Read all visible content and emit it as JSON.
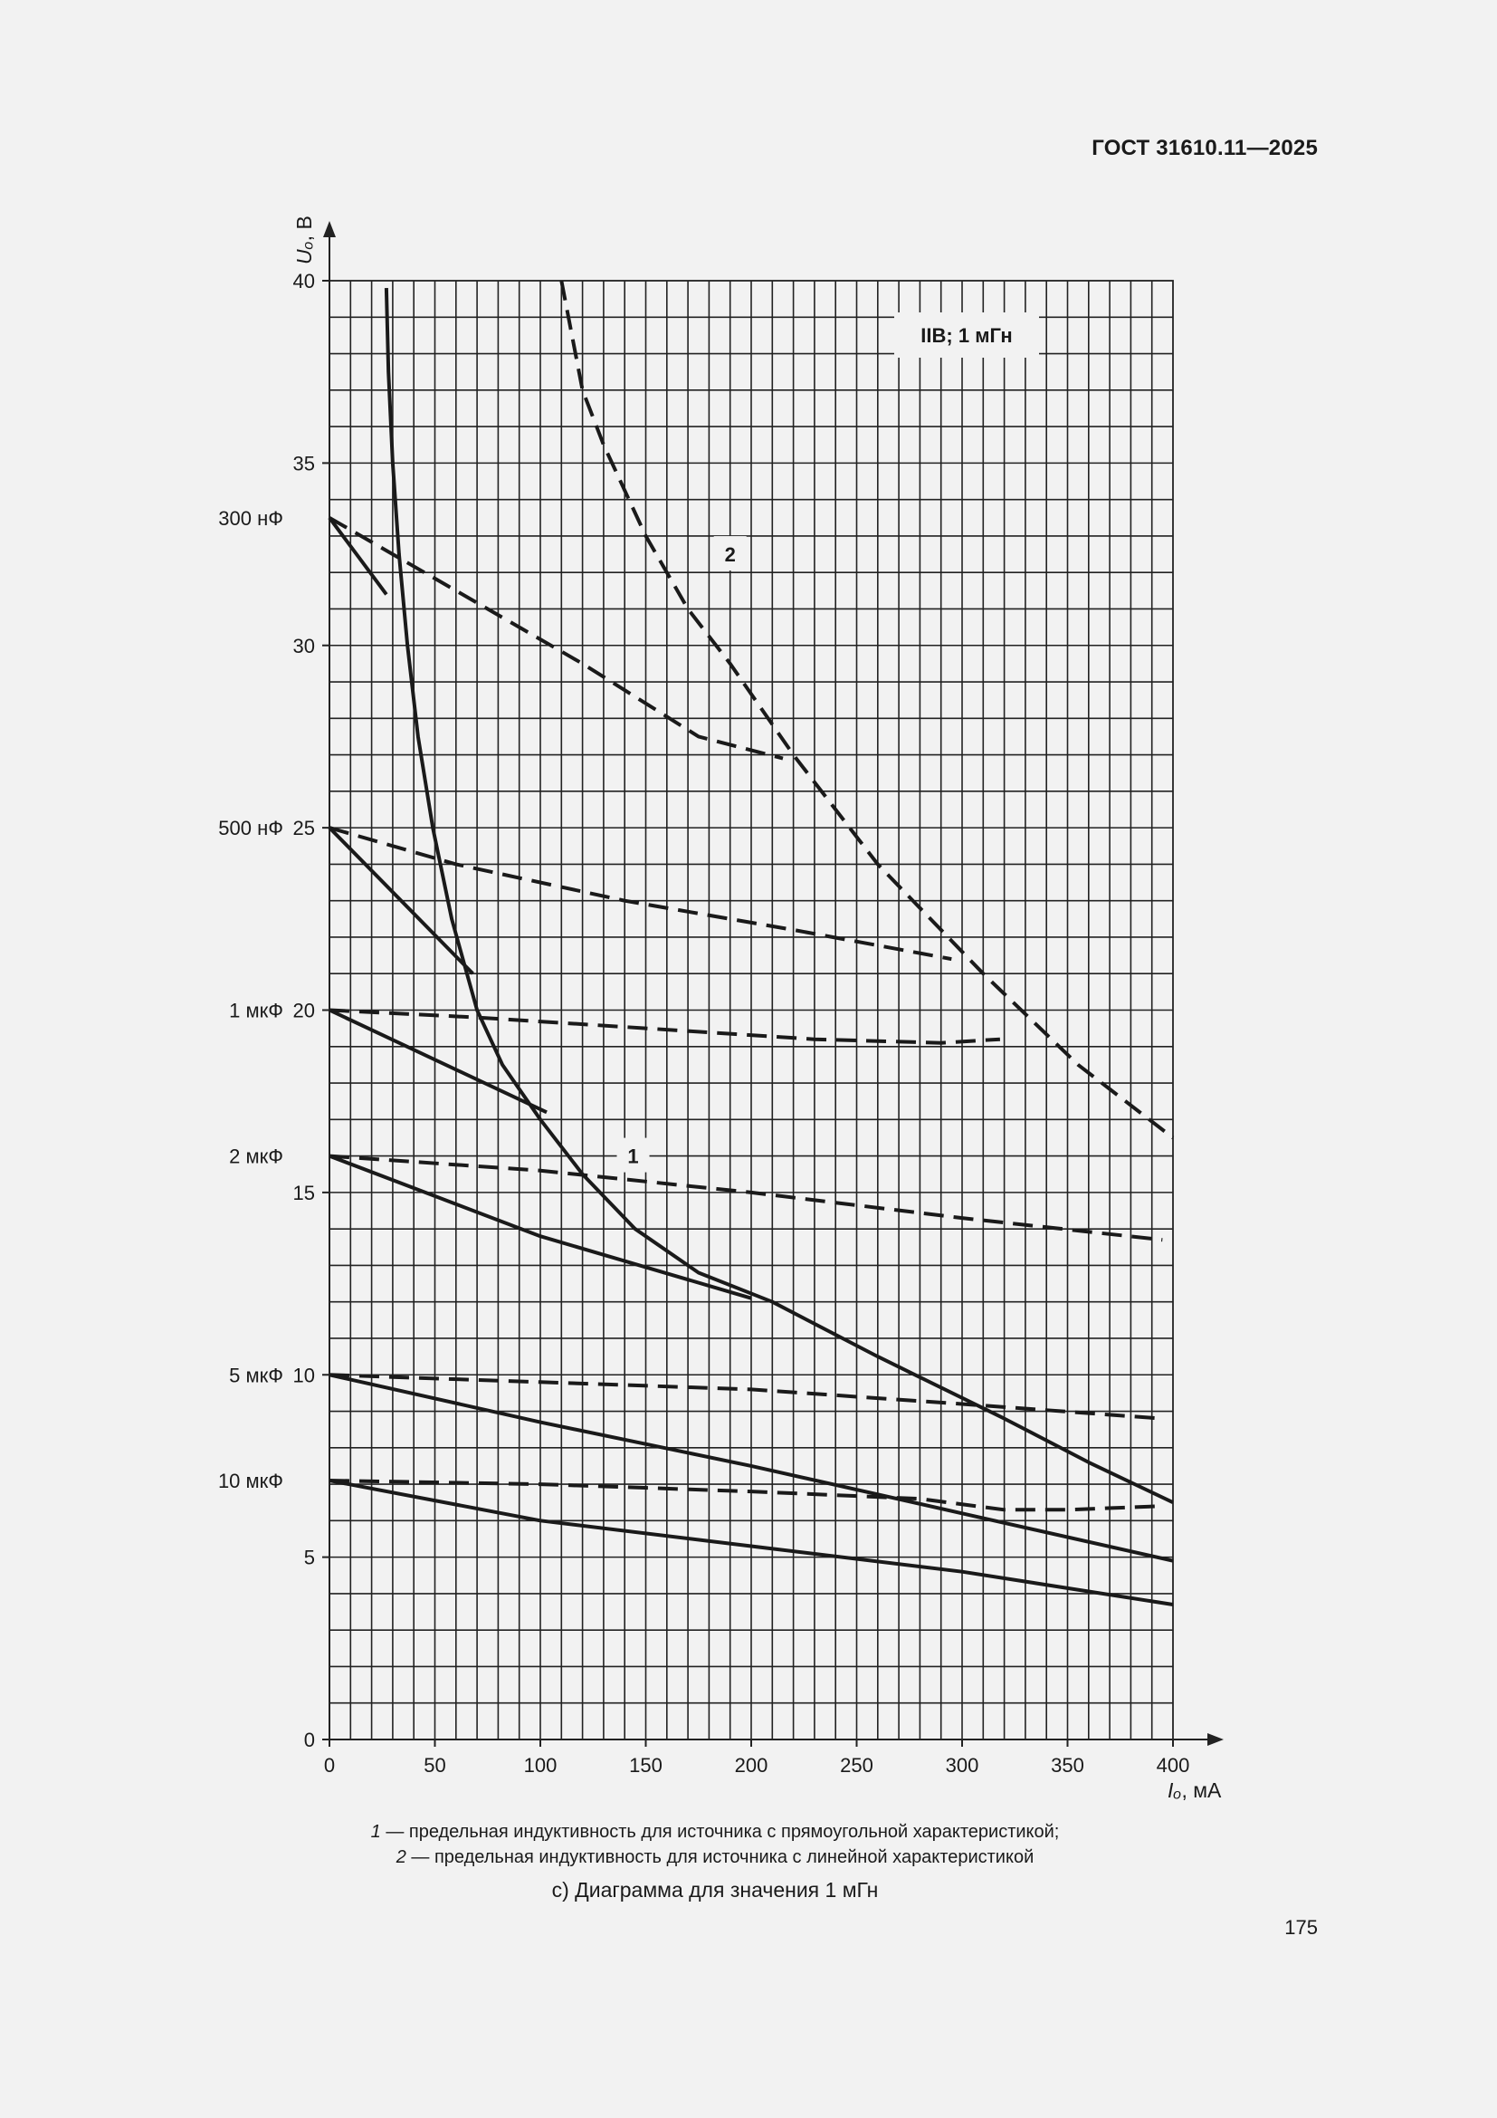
{
  "document": {
    "header": "ГОСТ 31610.11—2025",
    "page_number": "175",
    "subtitle": "с) Диаграмма для значения 1 мГн",
    "legend_lines": [
      {
        "num": "1",
        "text": " — предельная индуктивность для источника с прямоугольной характеристикой;"
      },
      {
        "num": "2",
        "text": " — предельная индуктивность для источника с линейной характеристикой"
      }
    ]
  },
  "chart_data": {
    "type": "line",
    "title": "IIB; 1 мГн",
    "xlabel": "Iₒ, мА",
    "ylabel": "Uₒ, В",
    "xlim": [
      0,
      400
    ],
    "ylim": [
      0,
      40
    ],
    "x_ticks": [
      0,
      50,
      100,
      150,
      200,
      250,
      300,
      350,
      400
    ],
    "y_ticks": [
      0,
      5,
      10,
      15,
      20,
      25,
      30,
      35,
      40
    ],
    "grid": true,
    "capacitance_labels": [
      {
        "label": "300 нФ",
        "u": 33.5
      },
      {
        "label": "500 нФ",
        "u": 25
      },
      {
        "label": "1 мкФ",
        "u": 20
      },
      {
        "label": "2 мкФ",
        "u": 16
      },
      {
        "label": "5 мкФ",
        "u": 10
      },
      {
        "label": "10 мкФ",
        "u": 7.1
      }
    ],
    "curve_labels": [
      {
        "label": "1",
        "x": 144,
        "y": 16.0
      },
      {
        "label": "2",
        "x": 190,
        "y": 32.5
      }
    ],
    "series": [
      {
        "style": "solid",
        "points": [
          [
            27,
            39.8
          ],
          [
            28,
            37.5
          ],
          [
            30,
            35.0
          ],
          [
            33,
            32.5
          ],
          [
            37,
            30.0
          ],
          [
            42,
            27.5
          ],
          [
            49,
            25.0
          ],
          [
            58,
            22.5
          ],
          [
            70,
            20.0
          ],
          [
            82,
            18.5
          ],
          [
            100,
            17.0
          ],
          [
            120,
            15.5
          ],
          [
            145,
            14.0
          ],
          [
            175,
            12.8
          ],
          [
            210,
            12.0
          ],
          [
            260,
            10.5
          ],
          [
            320,
            8.8
          ],
          [
            360,
            7.6
          ],
          [
            400,
            6.5
          ]
        ]
      },
      {
        "style": "dashed",
        "points": [
          [
            110,
            40.0
          ],
          [
            120,
            37.0
          ],
          [
            130,
            35.5
          ],
          [
            150,
            33.0
          ],
          [
            170,
            31.0
          ],
          [
            190,
            29.5
          ],
          [
            220,
            27.0
          ],
          [
            260,
            24.0
          ],
          [
            310,
            21.0
          ],
          [
            355,
            18.5
          ],
          [
            400,
            16.5
          ]
        ]
      },
      {
        "style": "solid",
        "points": [
          [
            0,
            33.5
          ],
          [
            27,
            31.4
          ]
        ]
      },
      {
        "style": "dashed",
        "points": [
          [
            0,
            33.5
          ],
          [
            60,
            31.5
          ],
          [
            120,
            29.5
          ],
          [
            175,
            27.5
          ],
          [
            215,
            26.9
          ]
        ]
      },
      {
        "style": "solid",
        "points": [
          [
            0,
            25.0
          ],
          [
            68,
            21.0
          ]
        ]
      },
      {
        "style": "dashed",
        "points": [
          [
            0,
            25.0
          ],
          [
            60,
            24.0
          ],
          [
            140,
            23.0
          ],
          [
            220,
            22.2
          ],
          [
            295,
            21.4
          ]
        ]
      },
      {
        "style": "solid",
        "points": [
          [
            0,
            20.0
          ],
          [
            103,
            17.2
          ]
        ]
      },
      {
        "style": "dashed",
        "points": [
          [
            0,
            20.0
          ],
          [
            70,
            19.8
          ],
          [
            150,
            19.5
          ],
          [
            230,
            19.2
          ],
          [
            290,
            19.1
          ],
          [
            318,
            19.2
          ]
        ]
      },
      {
        "style": "solid",
        "points": [
          [
            0,
            16.0
          ],
          [
            100,
            13.8
          ],
          [
            200,
            12.1
          ]
        ]
      },
      {
        "style": "dashed",
        "points": [
          [
            0,
            16.0
          ],
          [
            100,
            15.6
          ],
          [
            200,
            15.0
          ],
          [
            300,
            14.3
          ],
          [
            395,
            13.7
          ]
        ]
      },
      {
        "style": "solid",
        "points": [
          [
            0,
            10.0
          ],
          [
            100,
            8.7
          ],
          [
            200,
            7.5
          ],
          [
            300,
            6.2
          ],
          [
            400,
            4.9
          ]
        ]
      },
      {
        "style": "dashed",
        "points": [
          [
            0,
            10.0
          ],
          [
            100,
            9.8
          ],
          [
            200,
            9.6
          ],
          [
            300,
            9.2
          ],
          [
            395,
            8.8
          ]
        ]
      },
      {
        "style": "solid",
        "points": [
          [
            0,
            7.1
          ],
          [
            100,
            6.0
          ],
          [
            200,
            5.3
          ],
          [
            300,
            4.6
          ],
          [
            400,
            3.7
          ]
        ]
      },
      {
        "style": "dashed",
        "points": [
          [
            0,
            7.1
          ],
          [
            100,
            7.0
          ],
          [
            200,
            6.8
          ],
          [
            280,
            6.6
          ],
          [
            320,
            6.3
          ],
          [
            350,
            6.3
          ],
          [
            395,
            6.4
          ]
        ]
      }
    ]
  }
}
